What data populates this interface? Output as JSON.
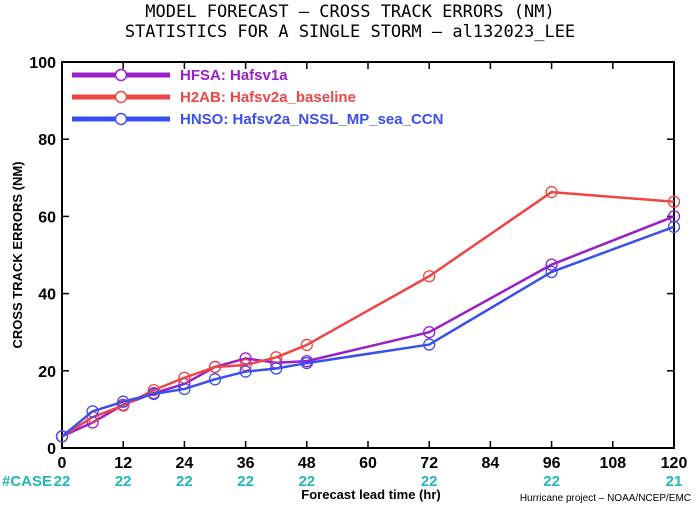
{
  "chart_data": {
    "type": "line",
    "title": "MODEL FORECAST – CROSS TRACK ERRORS (NM)",
    "subtitle": "STATISTICS FOR A SINGLE STORM – al132023_LEE",
    "xlabel": "Forecast lead time (hr)",
    "ylabel": "CROSS TRACK ERRORS (NM)",
    "xlim": [
      0,
      120
    ],
    "ylim": [
      0,
      100
    ],
    "xticks": [
      0,
      12,
      24,
      36,
      48,
      60,
      72,
      84,
      96,
      108,
      120
    ],
    "yticks": [
      0,
      20,
      40,
      60,
      80,
      100
    ],
    "legend_position": "top-left",
    "series": [
      {
        "name": "HFSA: Hafsv1a",
        "color": "#9a1fc9",
        "x": [
          0,
          6,
          12,
          18,
          24,
          30,
          36,
          42,
          48,
          72,
          96,
          120
        ],
        "y": [
          3.0,
          6.6,
          11.2,
          14.2,
          16.6,
          21.0,
          23.2,
          22.1,
          22.5,
          30.0,
          47.5,
          60.0
        ]
      },
      {
        "name": "H2AB: Hafsv2a_baseline",
        "color": "#f04545",
        "x": [
          0,
          6,
          12,
          18,
          24,
          30,
          36,
          42,
          48,
          72,
          96,
          120
        ],
        "y": [
          3.0,
          8.0,
          11.0,
          15.0,
          18.2,
          21.0,
          21.5,
          23.5,
          26.7,
          44.5,
          66.3,
          63.8
        ]
      },
      {
        "name": "HNSO: Hafsv2a_NSSL_MP_sea_CCN",
        "color": "#3a4ff0",
        "x": [
          0,
          6,
          12,
          18,
          24,
          30,
          36,
          42,
          48,
          72,
          96,
          120
        ],
        "y": [
          3.0,
          9.5,
          12.0,
          14.0,
          15.3,
          17.8,
          19.8,
          20.6,
          22.0,
          26.8,
          45.6,
          57.3
        ]
      }
    ],
    "case_label": "#CASE",
    "case_counts": {
      "x": [
        0,
        12,
        24,
        36,
        48,
        72,
        96,
        120
      ],
      "values": [
        "22",
        "22",
        "22",
        "22",
        "22",
        "22",
        "22",
        "21"
      ]
    },
    "case_color": "#1fb8b8",
    "credit": "Hurricane project – NOAA/NCEP/EMC"
  }
}
